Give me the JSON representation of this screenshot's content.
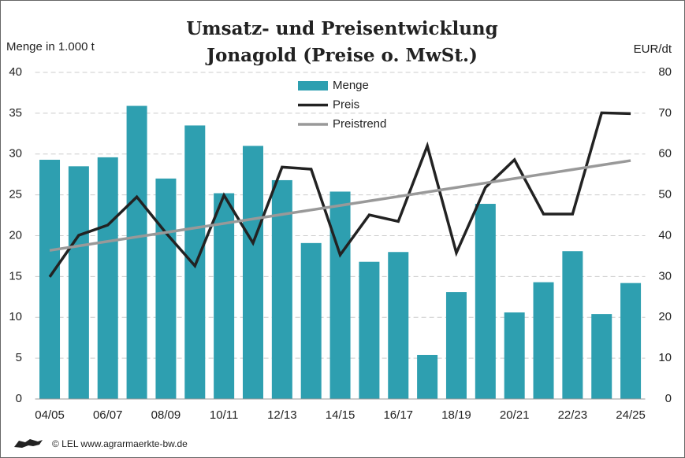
{
  "chart_data": {
    "type": "bar",
    "title": "Umsatz- und Preisentwicklung",
    "subtitle": "Jonagold (Preise o. MwSt.)",
    "y_label": "Menge in 1.000 t",
    "y2_label": "EUR/dt",
    "source": "© LEL www.agrarmaerkte-bw.de",
    "categories": [
      "04/05",
      null,
      "06/07",
      null,
      "08/09",
      null,
      "10/11",
      null,
      "12/13",
      null,
      "14/15",
      null,
      "16/17",
      null,
      "18/19",
      null,
      "20/21",
      null,
      "22/23",
      null,
      "24/25"
    ],
    "series": [
      {
        "name": "Menge",
        "type": "bar",
        "color": "#2e9fb0",
        "values": [
          29.3,
          28.5,
          29.6,
          35.9,
          27.0,
          33.5,
          25.2,
          31.0,
          26.8,
          19.1,
          25.4,
          16.8,
          18.0,
          5.4,
          13.1,
          23.9,
          10.6,
          14.3,
          18.1,
          10.4,
          14.2
        ]
      },
      {
        "name": "Preis",
        "type": "line",
        "axis": "y2",
        "color": "#222222",
        "values": [
          29.9,
          40.1,
          42.6,
          49.5,
          40.7,
          32.6,
          49.9,
          38.2,
          56.8,
          56.3,
          35.3,
          45.1,
          43.5,
          62.0,
          35.8,
          51.8,
          58.6,
          45.3,
          45.3,
          70.1,
          69.9
        ]
      },
      {
        "name": "Preistrend",
        "type": "line",
        "axis": "y2",
        "color": "#999999",
        "values": [
          36.4,
          37.5,
          38.6,
          39.7,
          40.8,
          41.9,
          43.0,
          44.1,
          45.2,
          46.3,
          47.4,
          48.5,
          49.6,
          50.7,
          51.8,
          52.9,
          54.0,
          55.1,
          56.2,
          57.3,
          58.4
        ]
      }
    ],
    "ylim": [
      0,
      40
    ],
    "yticks": [
      0,
      5,
      10,
      15,
      20,
      25,
      30,
      35,
      40
    ],
    "y2lim": [
      0,
      80
    ],
    "y2ticks": [
      0,
      10,
      20,
      30,
      40,
      50,
      60,
      70,
      80
    ],
    "grid": true
  }
}
